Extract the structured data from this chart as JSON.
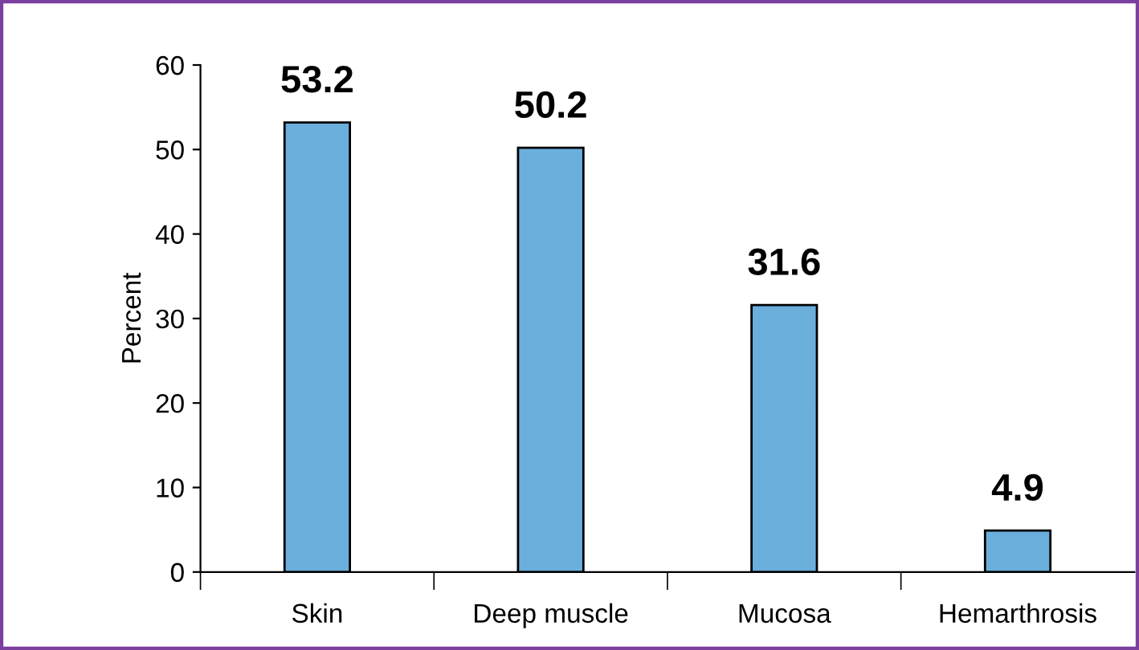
{
  "chart_data": {
    "type": "bar",
    "ylabel": "Percent",
    "categories": [
      "Skin",
      "Deep muscle",
      "Mucosa",
      "Hemarthrosis"
    ],
    "values": [
      53.2,
      50.2,
      31.6,
      4.9
    ],
    "color": "#6aaedc",
    "ylim": [
      0,
      60
    ],
    "yticks": [
      0,
      10,
      20,
      30,
      40,
      50,
      60
    ],
    "data_labels": true,
    "grid": false,
    "legend": false
  }
}
